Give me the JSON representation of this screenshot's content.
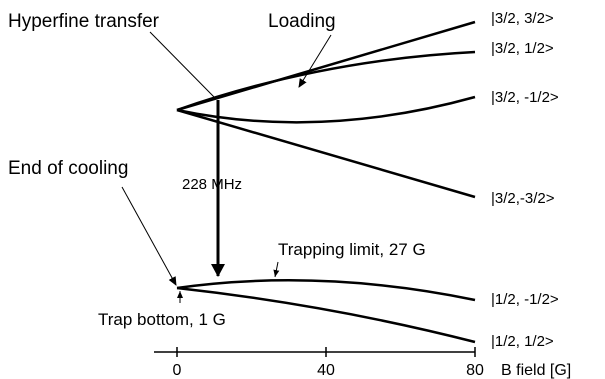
{
  "annotations": {
    "hyperfine_transfer": "Hyperfine transfer",
    "loading": "Loading",
    "end_of_cooling": "End of cooling",
    "frequency": "228 MHz",
    "trapping_limit": "Trapping limit, 27 G",
    "trap_bottom": "Trap bottom, 1 G"
  },
  "states": {
    "f32_p32": "|3/2, 3/2>",
    "f32_p12": "|3/2, 1/2>",
    "f32_m12": "|3/2, -1/2>",
    "f32_m32": "|3/2,-3/2>",
    "f12_m12": "|1/2, -1/2>",
    "f12_p12": "|1/2, 1/2>"
  },
  "axis": {
    "label": "B field [G]",
    "ticks": [
      "0",
      "40",
      "80"
    ]
  },
  "colors": {
    "ink": "#000000",
    "background": "#ffffff"
  }
}
